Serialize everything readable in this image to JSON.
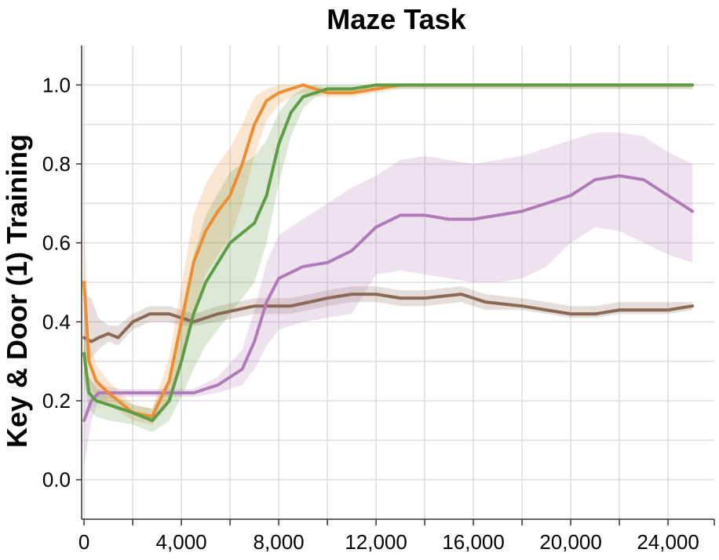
{
  "chart_data": {
    "type": "line",
    "title": "Maze Task",
    "xlabel": "",
    "ylabel": "Key & Door (1) Training",
    "xlim": [
      -100,
      25900
    ],
    "ylim": [
      -0.1,
      1.1
    ],
    "xticks": [
      0,
      4000,
      8000,
      12000,
      16000,
      20000,
      24000
    ],
    "xtick_labels": [
      "0",
      "4,000",
      "8,000",
      "12,000",
      "16,000",
      "20,000",
      "24,000"
    ],
    "yticks": [
      0.0,
      0.2,
      0.4,
      0.6,
      0.8,
      1.0
    ],
    "ytick_labels": [
      "0.0",
      "0.2",
      "0.4",
      "0.6",
      "0.8",
      "1.0"
    ],
    "grid": true,
    "series": [
      {
        "color": "#8b6a55",
        "x": [
          0,
          300,
          600,
          1000,
          1400,
          2000,
          2700,
          3500,
          4000,
          4500,
          5500,
          7000,
          8500,
          10000,
          11000,
          12000,
          13000,
          14000,
          15500,
          16500,
          18000,
          19000,
          20000,
          21000,
          22000,
          23000,
          24000,
          25000
        ],
        "y": [
          0.36,
          0.35,
          0.36,
          0.37,
          0.36,
          0.4,
          0.42,
          0.42,
          0.41,
          0.4,
          0.42,
          0.44,
          0.44,
          0.46,
          0.47,
          0.47,
          0.46,
          0.46,
          0.47,
          0.45,
          0.44,
          0.43,
          0.42,
          0.42,
          0.43,
          0.43,
          0.43,
          0.44
        ],
        "lower": [
          0.3,
          0.31,
          0.33,
          0.35,
          0.34,
          0.38,
          0.4,
          0.4,
          0.39,
          0.39,
          0.4,
          0.42,
          0.42,
          0.44,
          0.45,
          0.45,
          0.44,
          0.44,
          0.45,
          0.43,
          0.43,
          0.42,
          0.41,
          0.41,
          0.42,
          0.42,
          0.42,
          0.43
        ],
        "upper": [
          0.47,
          0.46,
          0.41,
          0.39,
          0.39,
          0.42,
          0.44,
          0.44,
          0.43,
          0.42,
          0.44,
          0.46,
          0.46,
          0.48,
          0.49,
          0.49,
          0.48,
          0.48,
          0.49,
          0.47,
          0.46,
          0.45,
          0.44,
          0.44,
          0.45,
          0.45,
          0.45,
          0.45
        ]
      },
      {
        "color": "#b07cb8",
        "x": [
          0,
          300,
          600,
          1500,
          2500,
          3500,
          4500,
          5500,
          6500,
          7000,
          7500,
          8000,
          9000,
          10000,
          11000,
          12000,
          13000,
          14000,
          15000,
          16000,
          17000,
          18000,
          19000,
          20000,
          21000,
          22000,
          23000,
          24000,
          25000
        ],
        "y": [
          0.15,
          0.2,
          0.22,
          0.22,
          0.22,
          0.22,
          0.22,
          0.24,
          0.28,
          0.35,
          0.45,
          0.51,
          0.54,
          0.55,
          0.58,
          0.64,
          0.67,
          0.67,
          0.66,
          0.66,
          0.67,
          0.68,
          0.7,
          0.72,
          0.76,
          0.77,
          0.76,
          0.72,
          0.68
        ],
        "lower": [
          0.03,
          0.15,
          0.2,
          0.21,
          0.21,
          0.21,
          0.21,
          0.22,
          0.24,
          0.28,
          0.34,
          0.38,
          0.4,
          0.41,
          0.42,
          0.52,
          0.53,
          0.52,
          0.51,
          0.5,
          0.5,
          0.51,
          0.54,
          0.6,
          0.64,
          0.63,
          0.6,
          0.57,
          0.55
        ],
        "upper": [
          0.28,
          0.25,
          0.24,
          0.23,
          0.23,
          0.23,
          0.23,
          0.26,
          0.33,
          0.43,
          0.55,
          0.62,
          0.66,
          0.7,
          0.74,
          0.77,
          0.81,
          0.82,
          0.81,
          0.8,
          0.81,
          0.82,
          0.84,
          0.86,
          0.88,
          0.88,
          0.87,
          0.83,
          0.8
        ]
      },
      {
        "color": "#ec8f34",
        "x": [
          0,
          200,
          500,
          1000,
          2000,
          2800,
          3500,
          4000,
          4500,
          5000,
          5500,
          6000,
          6500,
          7000,
          7500,
          8000,
          8500,
          9000,
          9500,
          10000,
          11000,
          12000,
          13000,
          14000,
          16000,
          18000,
          20000,
          22000,
          25000
        ],
        "y": [
          0.5,
          0.3,
          0.25,
          0.22,
          0.17,
          0.16,
          0.25,
          0.4,
          0.55,
          0.63,
          0.68,
          0.72,
          0.8,
          0.9,
          0.96,
          0.98,
          0.99,
          1.0,
          0.99,
          0.98,
          0.98,
          0.99,
          1.0,
          1.0,
          1.0,
          1.0,
          1.0,
          1.0,
          1.0
        ],
        "lower": [
          0.45,
          0.25,
          0.21,
          0.19,
          0.15,
          0.14,
          0.19,
          0.31,
          0.43,
          0.52,
          0.57,
          0.61,
          0.7,
          0.82,
          0.91,
          0.95,
          0.97,
          0.98,
          0.97,
          0.97,
          0.97,
          0.98,
          0.99,
          0.99,
          0.99,
          0.99,
          0.99,
          0.99,
          0.99
        ],
        "upper": [
          0.65,
          0.35,
          0.29,
          0.25,
          0.19,
          0.18,
          0.31,
          0.49,
          0.67,
          0.75,
          0.8,
          0.84,
          0.9,
          0.97,
          0.99,
          1.0,
          1.0,
          1.0,
          1.0,
          0.99,
          0.99,
          1.0,
          1.0,
          1.0,
          1.0,
          1.0,
          1.0,
          1.0,
          1.0
        ]
      },
      {
        "color": "#5e9c46",
        "x": [
          0,
          200,
          500,
          1000,
          2000,
          2800,
          3500,
          4000,
          4500,
          5000,
          6000,
          7000,
          7500,
          8000,
          8500,
          9000,
          9500,
          10000,
          11000,
          12000,
          14000,
          16000,
          18000,
          20000,
          22000,
          25000
        ],
        "y": [
          0.32,
          0.22,
          0.2,
          0.19,
          0.17,
          0.15,
          0.2,
          0.3,
          0.42,
          0.5,
          0.6,
          0.65,
          0.72,
          0.85,
          0.93,
          0.97,
          0.98,
          0.99,
          0.99,
          1.0,
          1.0,
          1.0,
          1.0,
          1.0,
          1.0,
          1.0
        ],
        "lower": [
          0.25,
          0.18,
          0.16,
          0.15,
          0.14,
          0.12,
          0.15,
          0.21,
          0.28,
          0.34,
          0.42,
          0.5,
          0.6,
          0.75,
          0.87,
          0.94,
          0.97,
          0.98,
          0.98,
          0.99,
          0.99,
          0.99,
          0.99,
          0.99,
          0.99,
          0.99
        ],
        "upper": [
          0.4,
          0.26,
          0.23,
          0.22,
          0.19,
          0.18,
          0.26,
          0.4,
          0.57,
          0.67,
          0.78,
          0.82,
          0.86,
          0.93,
          0.97,
          0.99,
          1.0,
          1.0,
          1.0,
          1.0,
          1.0,
          1.0,
          1.0,
          1.0,
          1.0,
          1.0
        ]
      }
    ]
  }
}
